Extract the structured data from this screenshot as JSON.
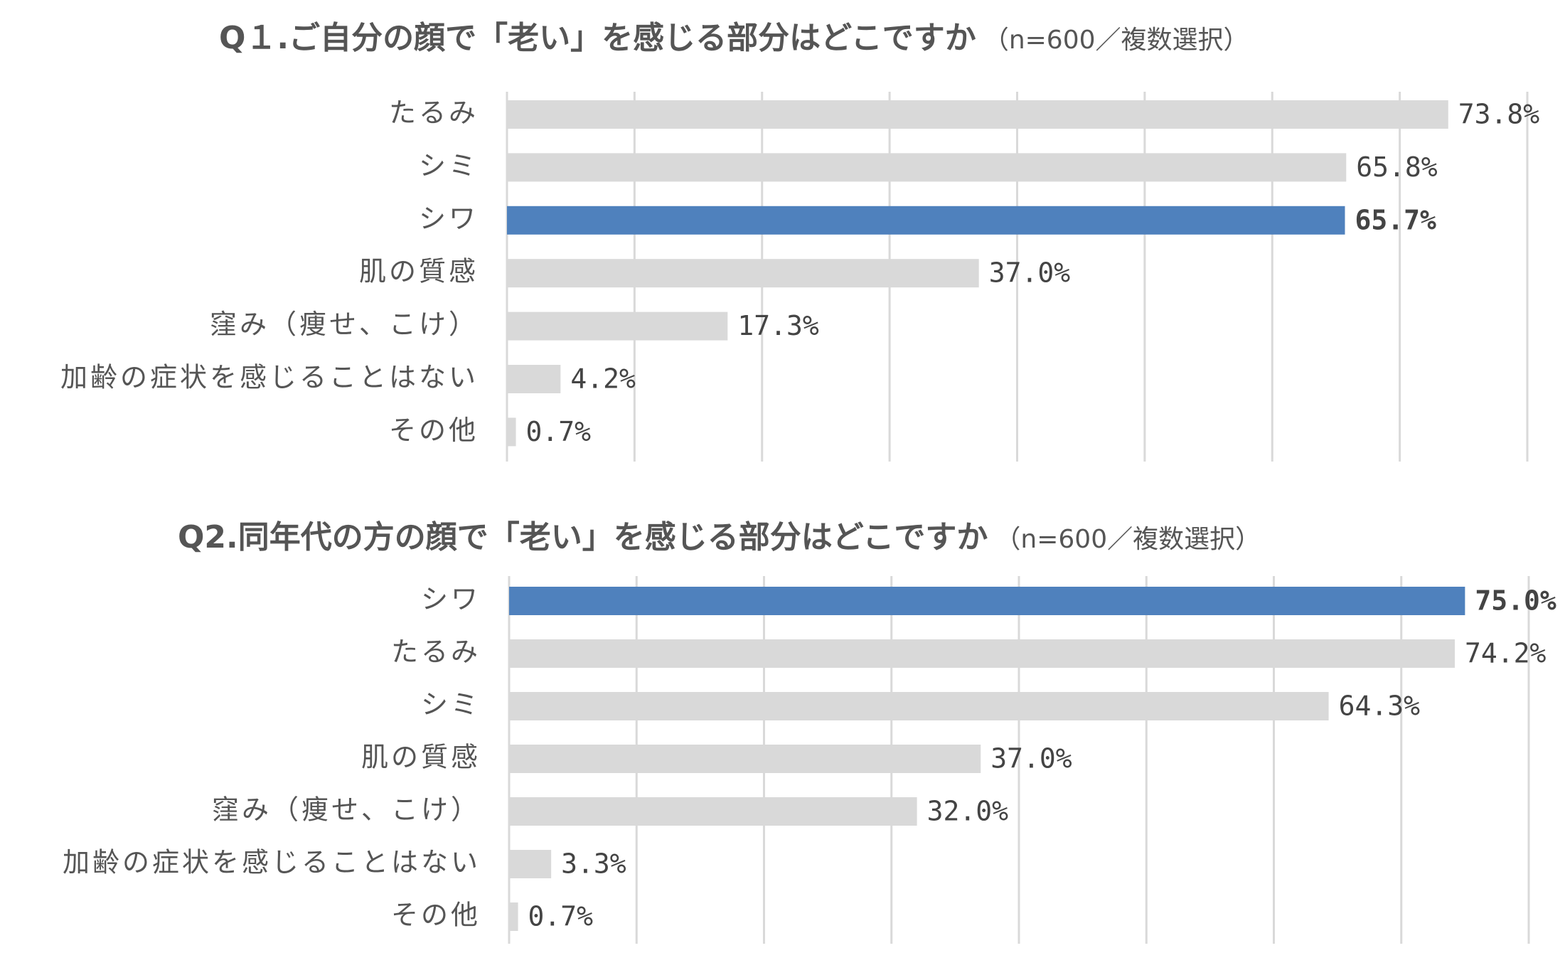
{
  "chart_data": [
    {
      "type": "bar",
      "orientation": "horizontal",
      "title": "Q１.ご自分の顔で「老い」を感じる部分はどこですか",
      "subtitle": "（n=600／複数選択）",
      "categories": [
        "たるみ",
        "シミ",
        "シワ",
        "肌の質感",
        "窪み（痩せ、こけ）",
        "加齢の症状を感じることはない",
        "その他"
      ],
      "values": [
        73.8,
        65.8,
        65.7,
        37.0,
        17.3,
        4.2,
        0.7
      ],
      "value_labels": [
        "73.8%",
        "65.8%",
        "65.7%",
        "37.0%",
        "17.3%",
        "4.2%",
        "0.7%"
      ],
      "color": "#d9d9d9",
      "highlight_color": "#4f81bd",
      "highlight": "シワ",
      "xlim": [
        0,
        80
      ],
      "xticks": [
        0,
        10,
        20,
        30,
        40,
        50,
        60,
        70,
        80
      ],
      "grid": true
    },
    {
      "type": "bar",
      "orientation": "horizontal",
      "title": "Q2.同年代の方の顔で「老い」を感じる部分はどこですか",
      "subtitle": "（n=600／複数選択）",
      "categories": [
        "シワ",
        "たるみ",
        "シミ",
        "肌の質感",
        "窪み（痩せ、こけ）",
        "加齢の症状を感じることはない",
        "その他"
      ],
      "values": [
        75.0,
        74.2,
        64.3,
        37.0,
        32.0,
        3.3,
        0.7
      ],
      "value_labels": [
        "75.0%",
        "74.2%",
        "64.3%",
        "37.0%",
        "32.0%",
        "3.3%",
        "0.7%"
      ],
      "color": "#d9d9d9",
      "highlight_color": "#4f81bd",
      "highlight": "シワ",
      "xlim": [
        0,
        80
      ],
      "xticks": [
        0,
        10,
        20,
        30,
        40,
        50,
        60,
        70,
        80
      ],
      "grid": true
    }
  ]
}
